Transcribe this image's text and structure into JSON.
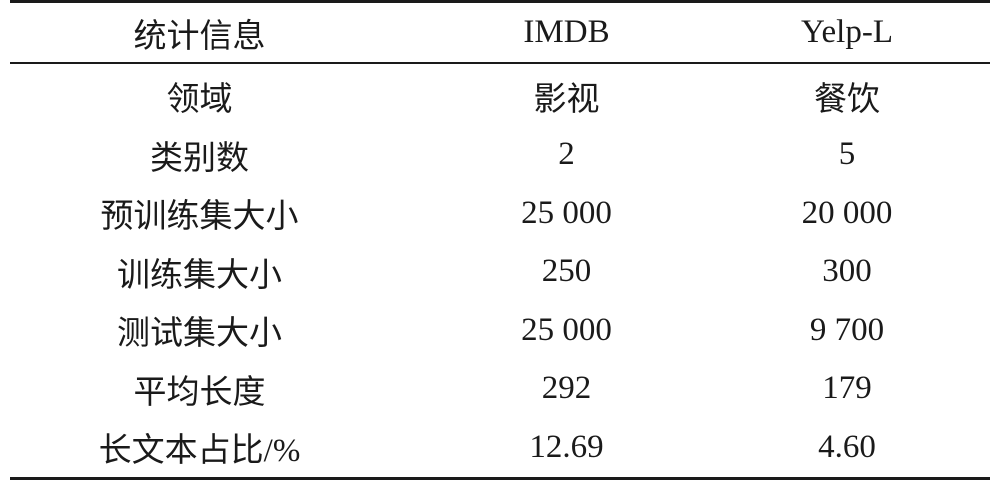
{
  "table": {
    "headers": [
      "统计信息",
      "IMDB",
      "Yelp-L"
    ],
    "rows": [
      [
        "领域",
        "影视",
        "餐饮"
      ],
      [
        "类别数",
        "2",
        "5"
      ],
      [
        "预训练集大小",
        "25 000",
        "20 000"
      ],
      [
        "训练集大小",
        "250",
        "300"
      ],
      [
        "测试集大小",
        "25 000",
        "9 700"
      ],
      [
        "平均长度",
        "292",
        "179"
      ],
      [
        "长文本占比/%",
        "12.69",
        "4.60"
      ]
    ]
  }
}
